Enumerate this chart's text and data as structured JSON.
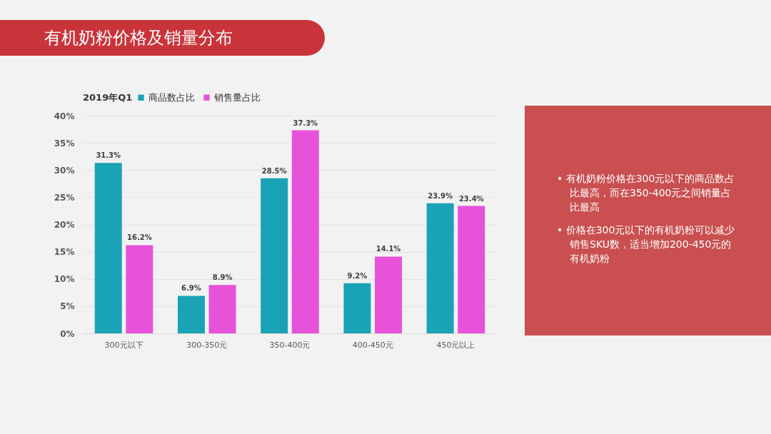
{
  "chart_data": {
    "type": "bar",
    "title": "有机奶粉价格及销量分布",
    "legend_title": "2019年Q1",
    "categories": [
      "300元以下",
      "300-350元",
      "350-400元",
      "400-450元",
      "450元以上"
    ],
    "series": [
      {
        "name": "商品数占比",
        "color": "#1aa2b6",
        "values": [
          31.3,
          6.9,
          28.5,
          9.2,
          23.9
        ],
        "value_labels": [
          "31.3%",
          "6.9%",
          "28.5%",
          "9.2%",
          "23.9%"
        ]
      },
      {
        "name": "销售量占比",
        "color": "#e653d8",
        "values": [
          16.2,
          8.9,
          37.3,
          14.1,
          23.4
        ],
        "value_labels": [
          "16.2%",
          "8.9%",
          "37.3%",
          "14.1%",
          "23.4%"
        ]
      }
    ],
    "ylim": [
      0,
      40
    ],
    "yticks": [
      {
        "value": 0,
        "label": "0%"
      },
      {
        "value": 5,
        "label": "5%"
      },
      {
        "value": 10,
        "label": "10%"
      },
      {
        "value": 15,
        "label": "15%"
      },
      {
        "value": 20,
        "label": "20%"
      },
      {
        "value": 25,
        "label": "25%"
      },
      {
        "value": 30,
        "label": "30%"
      },
      {
        "value": 35,
        "label": "35%"
      },
      {
        "value": 40,
        "label": "40%"
      }
    ],
    "grid": "y",
    "legend": "top",
    "annotations": [
      "• 有机奶粉价格在300元以下的商品数占比最高，而在350-400元之间销量占比最高",
      "• 价格在300元以下的有机奶粉可以减少销售SKU数，适当增加200-450元的有机奶粉"
    ]
  }
}
